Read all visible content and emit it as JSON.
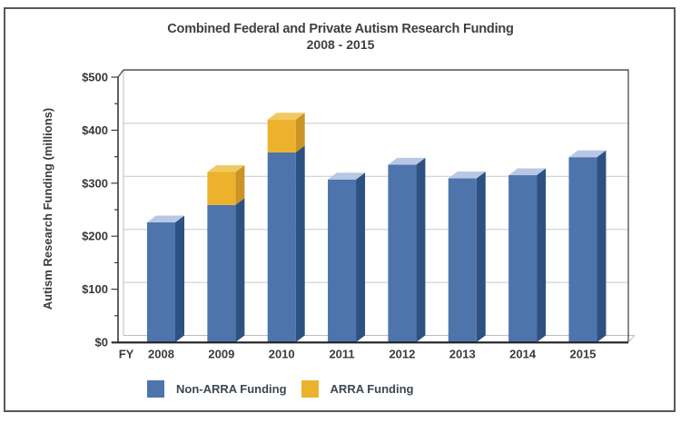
{
  "chart_data": {
    "type": "bar",
    "stacked": true,
    "title": "Combined Federal and Private Autism Research Funding",
    "subtitle": "2008 - 2015",
    "xlabel_prefix": "FY",
    "ylabel": "Autism Research Funding (millions)",
    "categories": [
      "2008",
      "2009",
      "2010",
      "2011",
      "2012",
      "2013",
      "2014",
      "2015"
    ],
    "series": [
      {
        "name": "Non-ARRA Funding",
        "color": "#4e74ac",
        "color_side": "#2d5181",
        "color_top": "#b6c8e4",
        "values": [
          226,
          259,
          358,
          307,
          335,
          309,
          315,
          349
        ]
      },
      {
        "name": "ARRA Funding",
        "color": "#ecb22c",
        "color_side": "#cc9425",
        "color_top": "#f0c963",
        "values": [
          0,
          62,
          62,
          0,
          0,
          0,
          0,
          0
        ]
      }
    ],
    "y_ticks": [
      "$0",
      "$100",
      "$200",
      "$300",
      "$400",
      "$500"
    ],
    "y_tick_values": [
      0,
      100,
      200,
      300,
      400,
      500
    ],
    "ylim": [
      0,
      500
    ],
    "minor_tick_step": 50,
    "grid": true,
    "legend_position": "bottom-left",
    "units": "millions of dollars"
  }
}
